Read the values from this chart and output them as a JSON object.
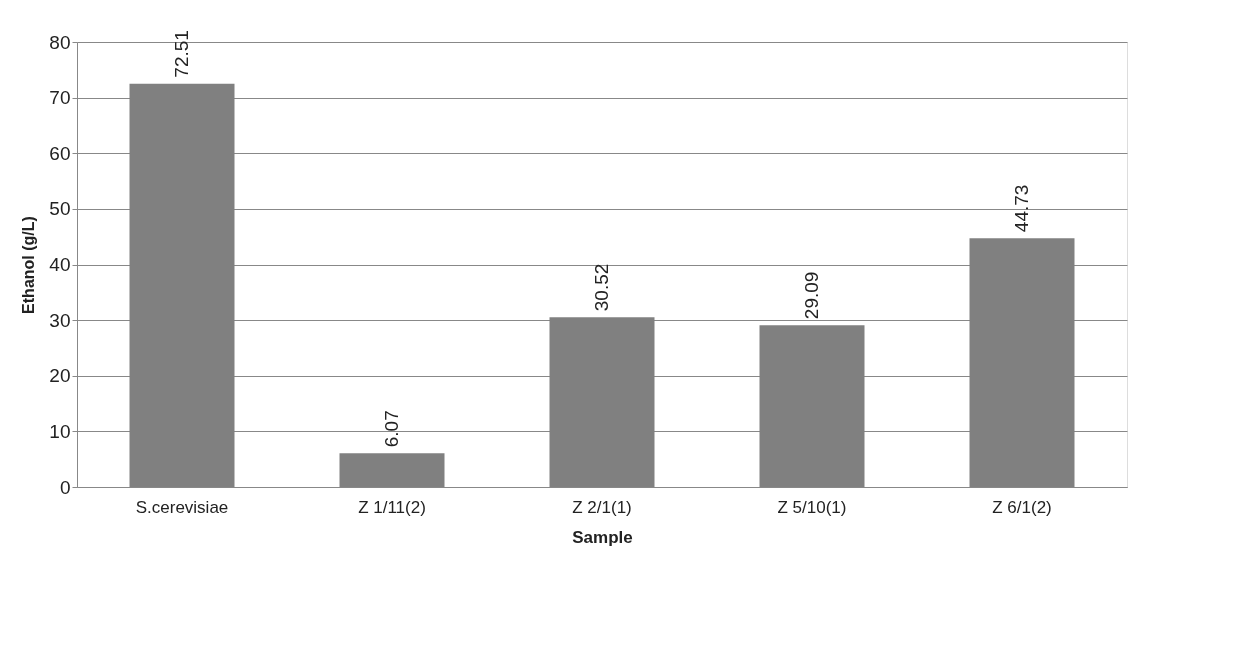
{
  "chart_data": {
    "type": "bar",
    "xlabel": "Sample",
    "ylabel": "Ethanol (g/L)",
    "categories": [
      "S.cerevisiae",
      "Z 1/11(2)",
      "Z 2/1(1)",
      "Z 5/10(1)",
      "Z 6/1(2)"
    ],
    "values": [
      72.51,
      6.07,
      30.52,
      29.09,
      44.73
    ],
    "color": "#808080",
    "ylim": [
      0,
      80
    ],
    "yticks": [
      0,
      10,
      20,
      30,
      40,
      50,
      60,
      70,
      80
    ],
    "grid": "y",
    "data_labels": true
  }
}
